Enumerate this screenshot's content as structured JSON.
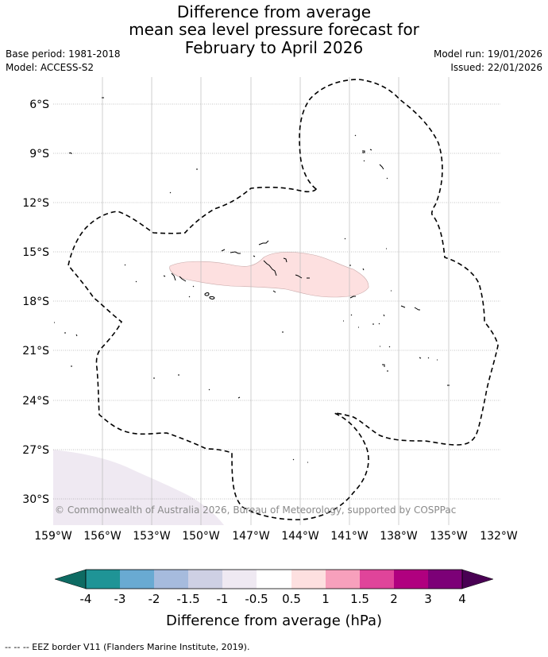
{
  "title": {
    "line1": "Difference from average",
    "line2": "mean sea level pressure forecast for",
    "line3": "February to April 2026"
  },
  "meta": {
    "base_period": "Base period: 1981-2018",
    "model": "Model: ACCESS-S2",
    "model_run": "Model run: 19/01/2026",
    "issued": "Issued: 22/01/2026"
  },
  "map": {
    "lat_labels": [
      "6°S",
      "9°S",
      "12°S",
      "15°S",
      "18°S",
      "21°S",
      "24°S",
      "27°S",
      "30°S"
    ],
    "lon_labels": [
      "159°W",
      "156°W",
      "153°W",
      "150°W",
      "147°W",
      "144°W",
      "141°W",
      "138°W",
      "135°W",
      "132°W"
    ],
    "copyright": "© Commonwealth of Australia 2026, Bureau of Meteorology, supported by COSPPac",
    "anomaly_fill_color": "#fde0e0",
    "southwest_fill_color": "#efe9f2",
    "eez_line_color": "#000000"
  },
  "colorbar": {
    "title": "Difference from average (hPa)",
    "ticks": [
      "-4",
      "-3",
      "-2",
      "-1.5",
      "-1",
      "-0.5",
      "0.5",
      "1",
      "1.5",
      "2",
      "3",
      "4"
    ],
    "colors": [
      "#0e6b63",
      "#1f9496",
      "#69aad2",
      "#a6bbdd",
      "#ced0e4",
      "#efe9f2",
      "#ffffff",
      "#fde0e0",
      "#f7a0bc",
      "#e0449a",
      "#b0007f",
      "#7c0177",
      "#490053"
    ]
  },
  "footer": "--  --  -- EEZ border V11 (Flanders Marine Institute, 2019)."
}
